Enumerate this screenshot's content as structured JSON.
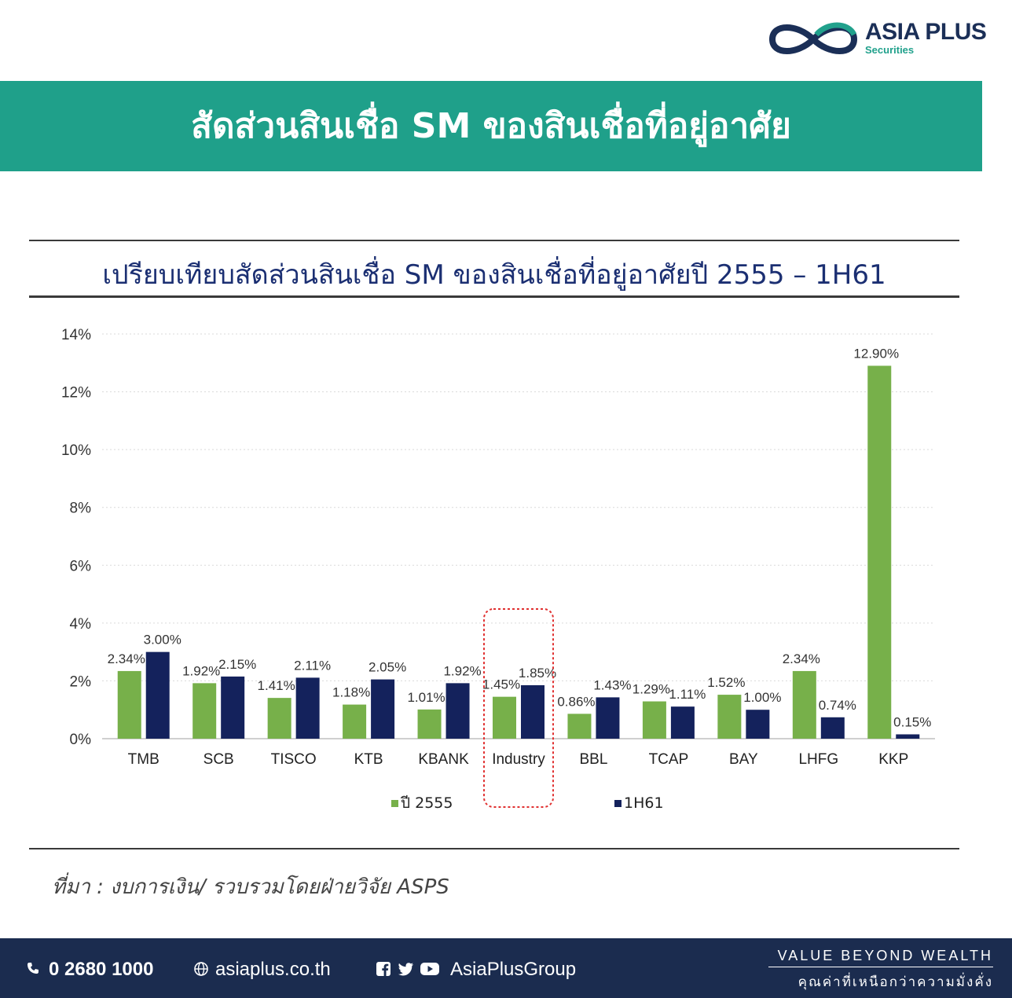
{
  "brand": {
    "name": "ASIA PLUS",
    "sub": "Securities"
  },
  "banner": {
    "title": "สัดส่วนสินเชื่อ SM ของสินเชื่อที่อยู่อาศัย"
  },
  "chart_data": {
    "type": "bar",
    "title": "เปรียบเทียบสัดส่วนสินเชื่อ SM ของสินเชื่อที่อยู่อาศัยปี 2555 – 1H61",
    "categories": [
      "TMB",
      "SCB",
      "TISCO",
      "KTB",
      "KBANK",
      "Industry",
      "BBL",
      "TCAP",
      "BAY",
      "LHFG",
      "KKP"
    ],
    "series": [
      {
        "name": "ปี 2555",
        "color": "#77b04a",
        "values": [
          2.34,
          1.92,
          1.41,
          1.18,
          1.01,
          1.45,
          0.86,
          1.29,
          1.52,
          2.34,
          12.9
        ],
        "labels": [
          "2.34%",
          "1.92%",
          "1.41%",
          "1.18%",
          "1.01%",
          "1.45%",
          "0.86%",
          "1.29%",
          "1.52%",
          "2.34%",
          "12.90%"
        ]
      },
      {
        "name": "1H61",
        "color": "#14225c",
        "values": [
          3.0,
          2.15,
          2.11,
          2.05,
          1.92,
          1.85,
          1.43,
          1.11,
          1.0,
          0.74,
          0.15
        ],
        "labels": [
          "3.00%",
          "2.15%",
          "2.11%",
          "2.05%",
          "1.92%",
          "1.85%",
          "1.43%",
          "1.11%",
          "1.00%",
          "0.74%",
          "0.15%"
        ]
      }
    ],
    "ylim": [
      0,
      14
    ],
    "yticks": [
      "0%",
      "2%",
      "4%",
      "6%",
      "8%",
      "10%",
      "12%",
      "14%"
    ],
    "grid": true,
    "legend": "bottom",
    "highlight_category": "Industry",
    "highlight_color": "#e03030"
  },
  "source": "ที่มา : งบการเงิน/ รวบรวมโดยฝ่ายวิจัย ASPS",
  "footer": {
    "phone": "0 2680 1000",
    "website": "asiaplus.co.th",
    "social": "AsiaPlusGroup",
    "tagline": "VALUE BEYOND WEALTH",
    "tagline_th": "คุณค่าที่เหนือกว่าความมั่งคั่ง"
  }
}
